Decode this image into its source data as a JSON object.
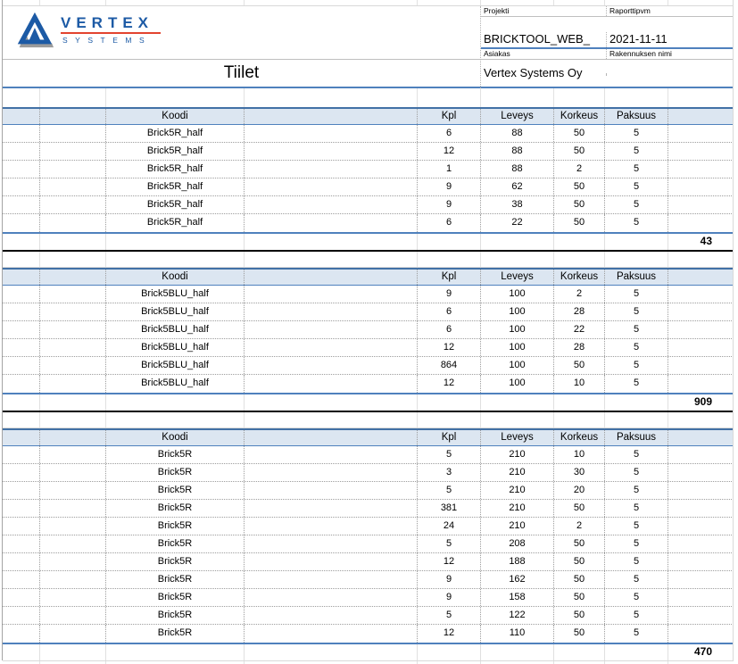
{
  "logo": {
    "brand": "VERTEX",
    "sub": "SYSTEMS"
  },
  "title": "Tiilet",
  "meta": {
    "projekti_label": "Projekti",
    "projekti_value": "BRICKTOOL_WEB_",
    "raporttipvm_label": "Raporttipvm",
    "raporttipvm_value": "2021-11-11",
    "asiakas_label": "Asiakas",
    "asiakas_value": "Vertex Systems Oy",
    "rakennuksen_nimi_label": "Rakennuksen nimi",
    "rakennuksen_nimi_value": ""
  },
  "columns": [
    "Koodi",
    "Kpl",
    "Leveys",
    "Korkeus",
    "Paksuus"
  ],
  "tables": [
    {
      "rows": [
        {
          "koodi": "Brick5R_half",
          "kpl": 6,
          "leveys": 88,
          "korkeus": 50,
          "paksuus": 5
        },
        {
          "koodi": "Brick5R_half",
          "kpl": 12,
          "leveys": 88,
          "korkeus": 50,
          "paksuus": 5
        },
        {
          "koodi": "Brick5R_half",
          "kpl": 1,
          "leveys": 88,
          "korkeus": 2,
          "paksuus": 5
        },
        {
          "koodi": "Brick5R_half",
          "kpl": 9,
          "leveys": 62,
          "korkeus": 50,
          "paksuus": 5
        },
        {
          "koodi": "Brick5R_half",
          "kpl": 9,
          "leveys": 38,
          "korkeus": 50,
          "paksuus": 5
        },
        {
          "koodi": "Brick5R_half",
          "kpl": 6,
          "leveys": 22,
          "korkeus": 50,
          "paksuus": 5
        }
      ],
      "total": 43
    },
    {
      "rows": [
        {
          "koodi": "Brick5BLU_half",
          "kpl": 9,
          "leveys": 100,
          "korkeus": 2,
          "paksuus": 5
        },
        {
          "koodi": "Brick5BLU_half",
          "kpl": 6,
          "leveys": 100,
          "korkeus": 28,
          "paksuus": 5
        },
        {
          "koodi": "Brick5BLU_half",
          "kpl": 6,
          "leveys": 100,
          "korkeus": 22,
          "paksuus": 5
        },
        {
          "koodi": "Brick5BLU_half",
          "kpl": 12,
          "leveys": 100,
          "korkeus": 28,
          "paksuus": 5
        },
        {
          "koodi": "Brick5BLU_half",
          "kpl": 864,
          "leveys": 100,
          "korkeus": 50,
          "paksuus": 5
        },
        {
          "koodi": "Brick5BLU_half",
          "kpl": 12,
          "leveys": 100,
          "korkeus": 10,
          "paksuus": 5
        }
      ],
      "total": 909
    },
    {
      "rows": [
        {
          "koodi": "Brick5R",
          "kpl": 5,
          "leveys": 210,
          "korkeus": 10,
          "paksuus": 5
        },
        {
          "koodi": "Brick5R",
          "kpl": 3,
          "leveys": 210,
          "korkeus": 30,
          "paksuus": 5
        },
        {
          "koodi": "Brick5R",
          "kpl": 5,
          "leveys": 210,
          "korkeus": 20,
          "paksuus": 5
        },
        {
          "koodi": "Brick5R",
          "kpl": 381,
          "leveys": 210,
          "korkeus": 50,
          "paksuus": 5
        },
        {
          "koodi": "Brick5R",
          "kpl": 24,
          "leveys": 210,
          "korkeus": 2,
          "paksuus": 5
        },
        {
          "koodi": "Brick5R",
          "kpl": 5,
          "leveys": 208,
          "korkeus": 50,
          "paksuus": 5
        },
        {
          "koodi": "Brick5R",
          "kpl": 12,
          "leveys": 188,
          "korkeus": 50,
          "paksuus": 5
        },
        {
          "koodi": "Brick5R",
          "kpl": 9,
          "leveys": 162,
          "korkeus": 50,
          "paksuus": 5
        },
        {
          "koodi": "Brick5R",
          "kpl": 9,
          "leveys": 158,
          "korkeus": 50,
          "paksuus": 5
        },
        {
          "koodi": "Brick5R",
          "kpl": 5,
          "leveys": 122,
          "korkeus": 50,
          "paksuus": 5
        },
        {
          "koodi": "Brick5R",
          "kpl": 12,
          "leveys": 110,
          "korkeus": 50,
          "paksuus": 5
        }
      ],
      "total": 470
    }
  ],
  "colors": {
    "accent_blue": "#4f81bd",
    "header_fill": "#dce6f1",
    "total_line_black": "#000000",
    "grid_gray": "#d9d9d9",
    "dotted_gray": "#9d9d9d",
    "logo_blue": "#1c5aa5",
    "logo_red": "#e2432f",
    "logo_gray": "#9b9b9b"
  }
}
